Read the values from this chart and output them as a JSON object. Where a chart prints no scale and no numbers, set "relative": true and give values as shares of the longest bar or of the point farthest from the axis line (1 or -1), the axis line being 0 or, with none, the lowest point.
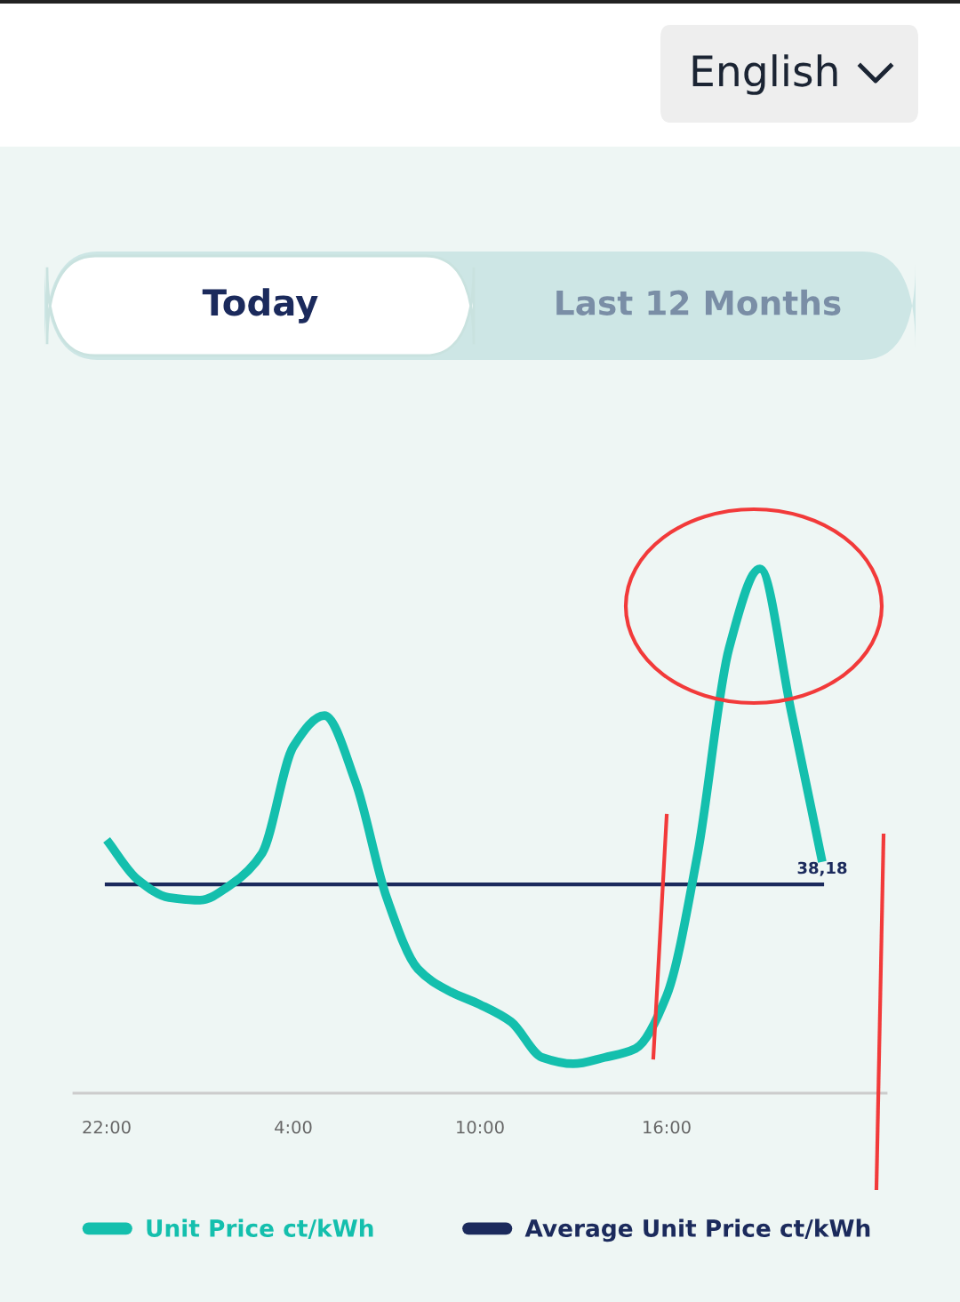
{
  "chart_data": {
    "type": "line",
    "relative": true,
    "annotations": [
      "English",
      "Today",
      "Last 12 Months",
      "38,18"
    ],
    "categories": [
      "22:00",
      null,
      null,
      null,
      null,
      null,
      "4:00",
      null,
      null,
      null,
      null,
      null,
      "10:00",
      null,
      null,
      null,
      null,
      null,
      "16:00",
      null,
      null,
      null,
      null,
      null
    ],
    "series": [
      {
        "name": "Unit Price ct/kWh",
        "color": "#14bfad",
        "values": [
          0.483,
          0.407,
          0.373,
          0.368,
          0.398,
          0.458,
          0.661,
          0.72,
          0.593,
          0.373,
          0.237,
          0.195,
          0.169,
          0.136,
          0.068,
          0.056,
          0.068,
          0.085,
          0.186,
          0.458,
          0.847,
          1.0,
          0.729,
          0.441
        ]
      }
    ],
    "ref_lines": [
      {
        "axis": "y",
        "value": 0.398,
        "label": "Average Unit Price ct/kWh",
        "color": "#1b2a5c"
      }
    ],
    "legend": "bottom",
    "grid": false,
    "marker": "none",
    "line_style": "solid"
  }
}
